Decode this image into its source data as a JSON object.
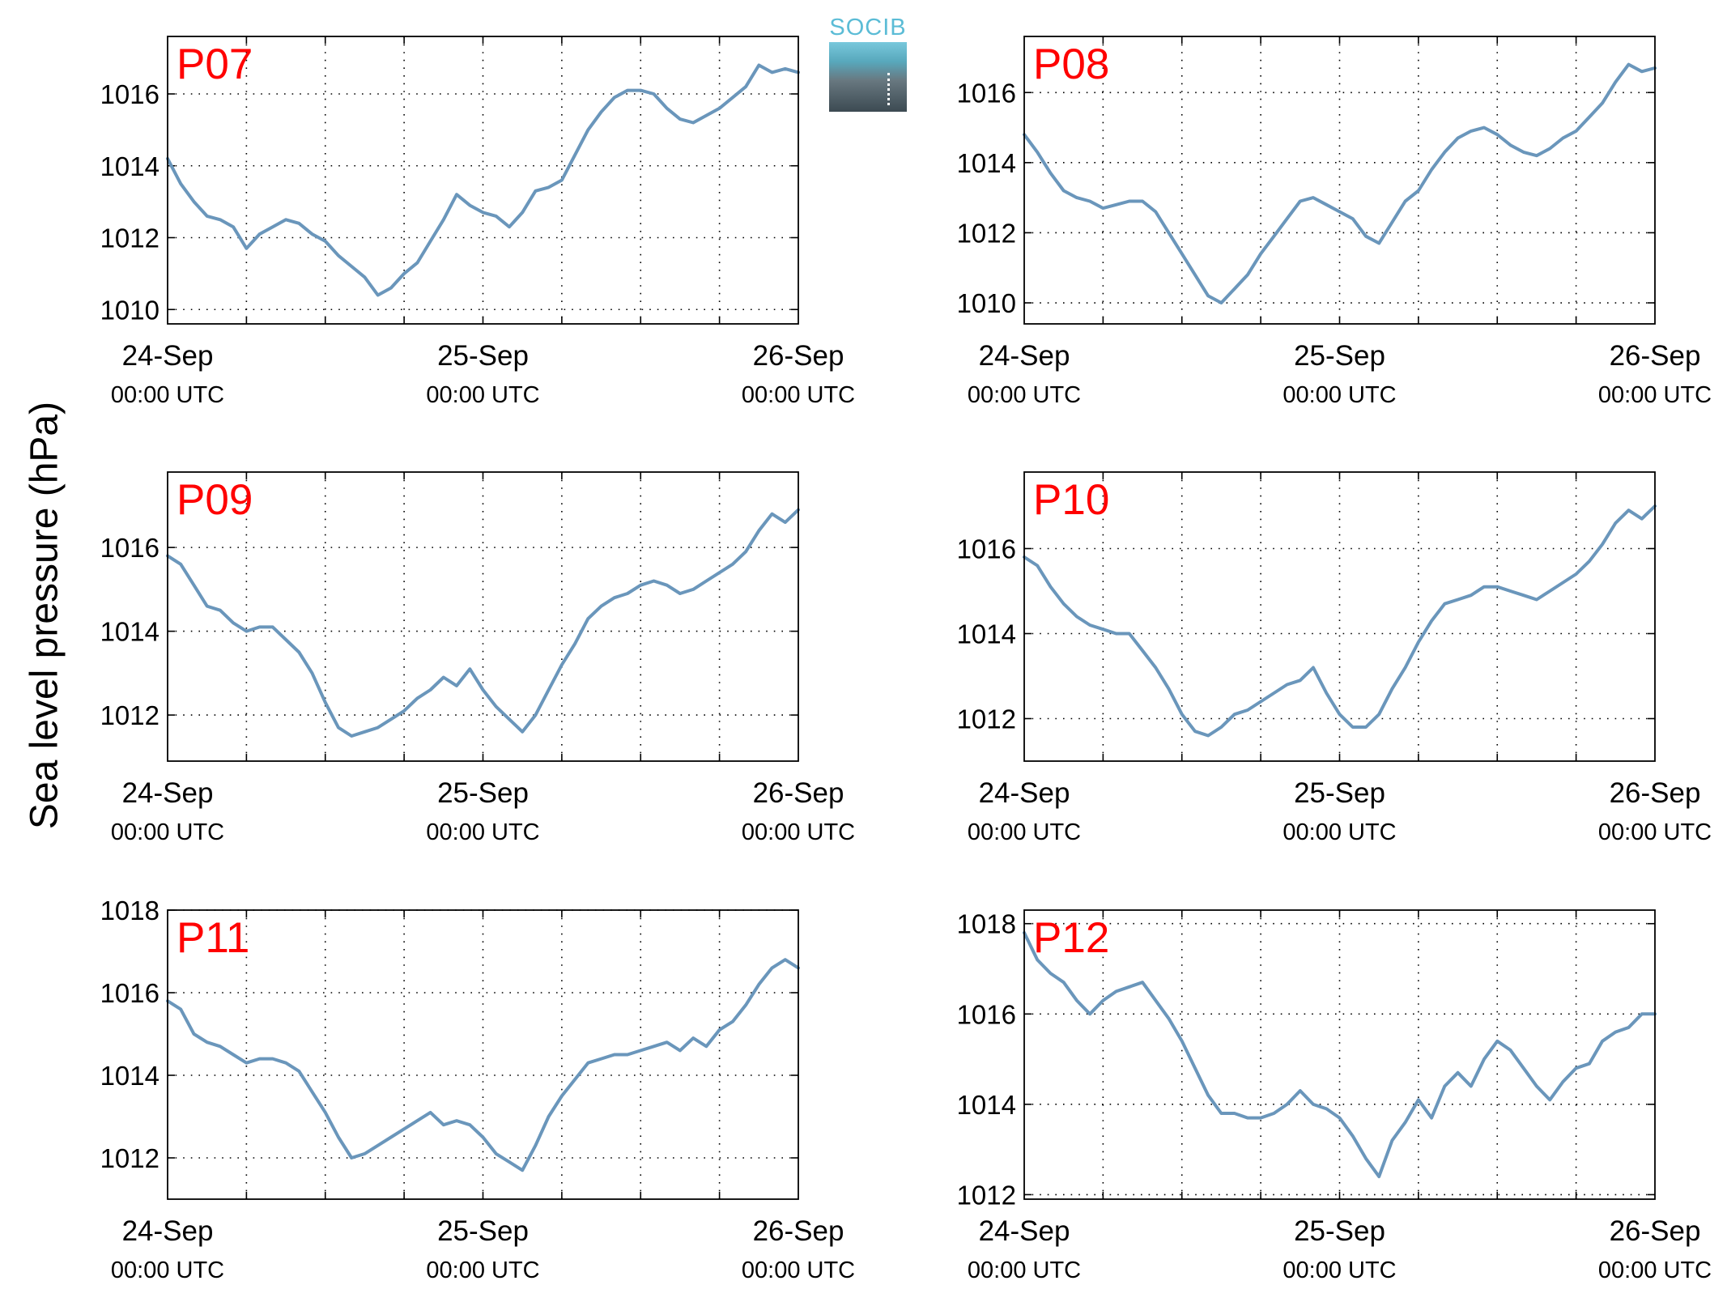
{
  "ylabel": "Sea level pressure (hPa)",
  "logo": {
    "text": "SOCIB"
  },
  "chart_data": [
    {
      "type": "line",
      "title": "P07",
      "x_ticks": [
        {
          "top": "24-Sep",
          "bottom": "00:00 UTC"
        },
        {
          "top": "25-Sep",
          "bottom": "00:00 UTC"
        },
        {
          "top": "26-Sep",
          "bottom": "00:00 UTC"
        }
      ],
      "y_ticks": [
        1010,
        1012,
        1014,
        1016
      ],
      "ylim": [
        1009.6,
        1017.6
      ],
      "xlim_hours": [
        0,
        48
      ],
      "grid": true,
      "line_color": "#6a96bb",
      "series": [
        {
          "x": [
            0,
            1,
            2,
            3,
            4,
            5,
            6,
            7,
            8,
            9,
            10,
            11,
            12,
            13,
            14,
            15,
            16,
            17,
            18,
            19,
            20,
            21,
            22,
            23,
            24,
            25,
            26,
            27,
            28,
            29,
            30,
            31,
            32,
            33,
            34,
            35,
            36,
            37,
            38,
            39,
            40,
            41,
            42,
            43,
            44,
            45,
            46,
            47,
            48
          ],
          "y": [
            1014.2,
            1013.5,
            1013.0,
            1012.6,
            1012.5,
            1012.3,
            1011.7,
            1012.1,
            1012.3,
            1012.5,
            1012.4,
            1012.1,
            1011.9,
            1011.5,
            1011.2,
            1010.9,
            1010.4,
            1010.6,
            1011.0,
            1011.3,
            1011.9,
            1012.5,
            1013.2,
            1012.9,
            1012.7,
            1012.6,
            1012.3,
            1012.7,
            1013.3,
            1013.4,
            1013.6,
            1014.3,
            1015.0,
            1015.5,
            1015.9,
            1016.1,
            1016.1,
            1016.0,
            1015.6,
            1015.3,
            1015.2,
            1015.4,
            1015.6,
            1015.9,
            1016.2,
            1016.8,
            1016.6,
            1016.7,
            1016.6
          ]
        }
      ]
    },
    {
      "type": "line",
      "title": "P08",
      "x_ticks": [
        {
          "top": "24-Sep",
          "bottom": "00:00 UTC"
        },
        {
          "top": "25-Sep",
          "bottom": "00:00 UTC"
        },
        {
          "top": "26-Sep",
          "bottom": "00:00 UTC"
        }
      ],
      "y_ticks": [
        1010,
        1012,
        1014,
        1016
      ],
      "ylim": [
        1009.4,
        1017.6
      ],
      "xlim_hours": [
        0,
        48
      ],
      "grid": true,
      "line_color": "#6a96bb",
      "series": [
        {
          "x": [
            0,
            1,
            2,
            3,
            4,
            5,
            6,
            7,
            8,
            9,
            10,
            11,
            12,
            13,
            14,
            15,
            16,
            17,
            18,
            19,
            20,
            21,
            22,
            23,
            24,
            25,
            26,
            27,
            28,
            29,
            30,
            31,
            32,
            33,
            34,
            35,
            36,
            37,
            38,
            39,
            40,
            41,
            42,
            43,
            44,
            45,
            46,
            47,
            48
          ],
          "y": [
            1014.8,
            1014.3,
            1013.7,
            1013.2,
            1013.0,
            1012.9,
            1012.7,
            1012.8,
            1012.9,
            1012.9,
            1012.6,
            1012.0,
            1011.4,
            1010.8,
            1010.2,
            1010.0,
            1010.4,
            1010.8,
            1011.4,
            1011.9,
            1012.4,
            1012.9,
            1013.0,
            1012.8,
            1012.6,
            1012.4,
            1011.9,
            1011.7,
            1012.3,
            1012.9,
            1013.2,
            1013.8,
            1014.3,
            1014.7,
            1014.9,
            1015.0,
            1014.8,
            1014.5,
            1014.3,
            1014.2,
            1014.4,
            1014.7,
            1014.9,
            1015.3,
            1015.7,
            1016.3,
            1016.8,
            1016.6,
            1016.7
          ]
        }
      ]
    },
    {
      "type": "line",
      "title": "P09",
      "x_ticks": [
        {
          "top": "24-Sep",
          "bottom": "00:00 UTC"
        },
        {
          "top": "25-Sep",
          "bottom": "00:00 UTC"
        },
        {
          "top": "26-Sep",
          "bottom": "00:00 UTC"
        }
      ],
      "y_ticks": [
        1012,
        1014,
        1016
      ],
      "ylim": [
        1010.9,
        1017.8
      ],
      "xlim_hours": [
        0,
        48
      ],
      "grid": true,
      "line_color": "#6a96bb",
      "series": [
        {
          "x": [
            0,
            1,
            2,
            3,
            4,
            5,
            6,
            7,
            8,
            9,
            10,
            11,
            12,
            13,
            14,
            15,
            16,
            17,
            18,
            19,
            20,
            21,
            22,
            23,
            24,
            25,
            26,
            27,
            28,
            29,
            30,
            31,
            32,
            33,
            34,
            35,
            36,
            37,
            38,
            39,
            40,
            41,
            42,
            43,
            44,
            45,
            46,
            47,
            48
          ],
          "y": [
            1015.8,
            1015.6,
            1015.1,
            1014.6,
            1014.5,
            1014.2,
            1014.0,
            1014.1,
            1014.1,
            1013.8,
            1013.5,
            1013.0,
            1012.3,
            1011.7,
            1011.5,
            1011.6,
            1011.7,
            1011.9,
            1012.1,
            1012.4,
            1012.6,
            1012.9,
            1012.7,
            1013.1,
            1012.6,
            1012.2,
            1011.9,
            1011.6,
            1012.0,
            1012.6,
            1013.2,
            1013.7,
            1014.3,
            1014.6,
            1014.8,
            1014.9,
            1015.1,
            1015.2,
            1015.1,
            1014.9,
            1015.0,
            1015.2,
            1015.4,
            1015.6,
            1015.9,
            1016.4,
            1016.8,
            1016.6,
            1016.9
          ]
        }
      ]
    },
    {
      "type": "line",
      "title": "P10",
      "x_ticks": [
        {
          "top": "24-Sep",
          "bottom": "00:00 UTC"
        },
        {
          "top": "25-Sep",
          "bottom": "00:00 UTC"
        },
        {
          "top": "26-Sep",
          "bottom": "00:00 UTC"
        }
      ],
      "y_ticks": [
        1012,
        1014,
        1016
      ],
      "ylim": [
        1011.0,
        1017.8
      ],
      "xlim_hours": [
        0,
        48
      ],
      "grid": true,
      "line_color": "#6a96bb",
      "series": [
        {
          "x": [
            0,
            1,
            2,
            3,
            4,
            5,
            6,
            7,
            8,
            9,
            10,
            11,
            12,
            13,
            14,
            15,
            16,
            17,
            18,
            19,
            20,
            21,
            22,
            23,
            24,
            25,
            26,
            27,
            28,
            29,
            30,
            31,
            32,
            33,
            34,
            35,
            36,
            37,
            38,
            39,
            40,
            41,
            42,
            43,
            44,
            45,
            46,
            47,
            48
          ],
          "y": [
            1015.8,
            1015.6,
            1015.1,
            1014.7,
            1014.4,
            1014.2,
            1014.1,
            1014.0,
            1014.0,
            1013.6,
            1013.2,
            1012.7,
            1012.1,
            1011.7,
            1011.6,
            1011.8,
            1012.1,
            1012.2,
            1012.4,
            1012.6,
            1012.8,
            1012.9,
            1013.2,
            1012.6,
            1012.1,
            1011.8,
            1011.8,
            1012.1,
            1012.7,
            1013.2,
            1013.8,
            1014.3,
            1014.7,
            1014.8,
            1014.9,
            1015.1,
            1015.1,
            1015.0,
            1014.9,
            1014.8,
            1015.0,
            1015.2,
            1015.4,
            1015.7,
            1016.1,
            1016.6,
            1016.9,
            1016.7,
            1017.0
          ]
        }
      ]
    },
    {
      "type": "line",
      "title": "P11",
      "x_ticks": [
        {
          "top": "24-Sep",
          "bottom": "00:00 UTC"
        },
        {
          "top": "25-Sep",
          "bottom": "00:00 UTC"
        },
        {
          "top": "26-Sep",
          "bottom": "00:00 UTC"
        }
      ],
      "y_ticks": [
        1012,
        1014,
        1016,
        1018
      ],
      "ylim": [
        1011.0,
        1018.0
      ],
      "xlim_hours": [
        0,
        48
      ],
      "grid": true,
      "line_color": "#6a96bb",
      "series": [
        {
          "x": [
            0,
            1,
            2,
            3,
            4,
            5,
            6,
            7,
            8,
            9,
            10,
            11,
            12,
            13,
            14,
            15,
            16,
            17,
            18,
            19,
            20,
            21,
            22,
            23,
            24,
            25,
            26,
            27,
            28,
            29,
            30,
            31,
            32,
            33,
            34,
            35,
            36,
            37,
            38,
            39,
            40,
            41,
            42,
            43,
            44,
            45,
            46,
            47,
            48
          ],
          "y": [
            1015.8,
            1015.6,
            1015.0,
            1014.8,
            1014.7,
            1014.5,
            1014.3,
            1014.4,
            1014.4,
            1014.3,
            1014.1,
            1013.6,
            1013.1,
            1012.5,
            1012.0,
            1012.1,
            1012.3,
            1012.5,
            1012.7,
            1012.9,
            1013.1,
            1012.8,
            1012.9,
            1012.8,
            1012.5,
            1012.1,
            1011.9,
            1011.7,
            1012.3,
            1013.0,
            1013.5,
            1013.9,
            1014.3,
            1014.4,
            1014.5,
            1014.5,
            1014.6,
            1014.7,
            1014.8,
            1014.6,
            1014.9,
            1014.7,
            1015.1,
            1015.3,
            1015.7,
            1016.2,
            1016.6,
            1016.8,
            1016.6
          ]
        }
      ]
    },
    {
      "type": "line",
      "title": "P12",
      "x_ticks": [
        {
          "top": "24-Sep",
          "bottom": "00:00 UTC"
        },
        {
          "top": "25-Sep",
          "bottom": "00:00 UTC"
        },
        {
          "top": "26-Sep",
          "bottom": "00:00 UTC"
        }
      ],
      "y_ticks": [
        1012,
        1014,
        1016,
        1018
      ],
      "ylim": [
        1011.9,
        1018.3
      ],
      "xlim_hours": [
        0,
        48
      ],
      "grid": true,
      "line_color": "#6a96bb",
      "series": [
        {
          "x": [
            0,
            1,
            2,
            3,
            4,
            5,
            6,
            7,
            8,
            9,
            10,
            11,
            12,
            13,
            14,
            15,
            16,
            17,
            18,
            19,
            20,
            21,
            22,
            23,
            24,
            25,
            26,
            27,
            28,
            29,
            30,
            31,
            32,
            33,
            34,
            35,
            36,
            37,
            38,
            39,
            40,
            41,
            42,
            43,
            44,
            45,
            46,
            47,
            48
          ],
          "y": [
            1017.8,
            1017.2,
            1016.9,
            1016.7,
            1016.3,
            1016.0,
            1016.3,
            1016.5,
            1016.6,
            1016.7,
            1016.3,
            1015.9,
            1015.4,
            1014.8,
            1014.2,
            1013.8,
            1013.8,
            1013.7,
            1013.7,
            1013.8,
            1014.0,
            1014.3,
            1014.0,
            1013.9,
            1013.7,
            1013.3,
            1012.8,
            1012.4,
            1013.2,
            1013.6,
            1014.1,
            1013.7,
            1014.4,
            1014.7,
            1014.4,
            1015.0,
            1015.4,
            1015.2,
            1014.8,
            1014.4,
            1014.1,
            1014.5,
            1014.8,
            1014.9,
            1015.4,
            1015.6,
            1015.7,
            1016.0,
            1016.0
          ]
        }
      ]
    }
  ]
}
